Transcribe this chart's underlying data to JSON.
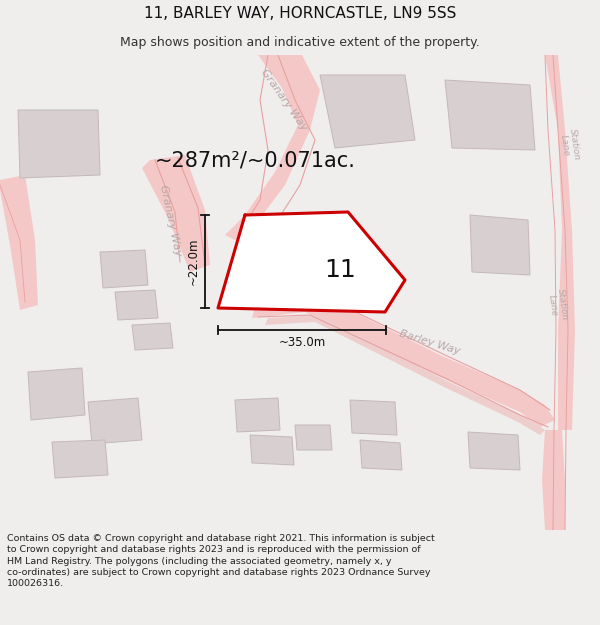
{
  "title": "11, BARLEY WAY, HORNCASTLE, LN9 5SS",
  "subtitle": "Map shows position and indicative extent of the property.",
  "area_label": "~287m²/~0.071ac.",
  "plot_number": "11",
  "dim_height": "~22.0m",
  "dim_width": "~35.0m",
  "footer": "Contains OS data © Crown copyright and database right 2021. This information is subject to Crown copyright and database rights 2023 and is reproduced with the permission of HM Land Registry. The polygons (including the associated geometry, namely x, y co-ordinates) are subject to Crown copyright and database rights 2023 Ordnance Survey 100026316.",
  "bg_color": "#f0eded",
  "map_bg": "#ffffff",
  "plot_edge": "#cc0000",
  "road_fill": "#f5c8c8",
  "road_edge": "#e8a0a0",
  "building_fill": "#d8d0d0",
  "building_edge": "#c4b8b8",
  "street_text_color": "#b8a8a8",
  "title_fontsize": 11,
  "subtitle_fontsize": 9,
  "footer_fontsize": 6.8,
  "area_label_fontsize": 15,
  "dim_fontsize": 8.5,
  "plot_num_fontsize": 18,
  "street_label_fontsize": 8
}
